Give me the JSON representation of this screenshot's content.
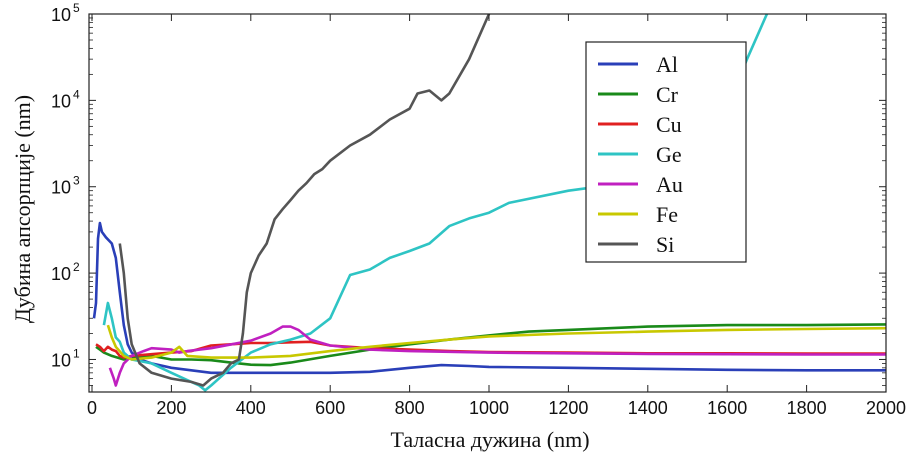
{
  "chart_data": {
    "type": "line",
    "xlabel": "Таласна дужина (nm)",
    "ylabel": "Дубина апсорпције (nm)",
    "xlim": [
      0,
      2000
    ],
    "ylim": [
      4.2,
      100000
    ],
    "yscale": "log",
    "grid": false,
    "legend_position": "top-right",
    "x_ticks": [
      "0",
      "200",
      "400",
      "600",
      "800",
      "1000",
      "1200",
      "1400",
      "1600",
      "1800",
      "2000"
    ],
    "y_ticks": [
      {
        "base": "10",
        "exp": "1"
      },
      {
        "base": "10",
        "exp": "2"
      },
      {
        "base": "10",
        "exp": "3"
      },
      {
        "base": "10",
        "exp": "4"
      },
      {
        "base": "10",
        "exp": "5"
      }
    ],
    "series": [
      {
        "name": "Al",
        "color": "#2a3fb8",
        "points": [
          [
            5,
            30
          ],
          [
            10,
            45
          ],
          [
            15,
            250
          ],
          [
            20,
            380
          ],
          [
            25,
            300
          ],
          [
            35,
            260
          ],
          [
            50,
            220
          ],
          [
            60,
            150
          ],
          [
            70,
            60
          ],
          [
            80,
            25
          ],
          [
            90,
            15
          ],
          [
            100,
            12
          ],
          [
            120,
            10
          ],
          [
            150,
            9
          ],
          [
            200,
            8
          ],
          [
            300,
            7
          ],
          [
            400,
            7
          ],
          [
            500,
            7
          ],
          [
            600,
            7
          ],
          [
            700,
            7.2
          ],
          [
            800,
            8
          ],
          [
            880,
            8.6
          ],
          [
            950,
            8.4
          ],
          [
            1000,
            8.2
          ],
          [
            1200,
            8
          ],
          [
            1400,
            7.8
          ],
          [
            1600,
            7.6
          ],
          [
            1800,
            7.5
          ],
          [
            2000,
            7.5
          ]
        ]
      },
      {
        "name": "Cr",
        "color": "#1a8a1a",
        "points": [
          [
            10,
            14
          ],
          [
            20,
            13
          ],
          [
            30,
            12
          ],
          [
            50,
            11
          ],
          [
            80,
            10
          ],
          [
            100,
            10.5
          ],
          [
            150,
            11
          ],
          [
            200,
            10
          ],
          [
            250,
            10
          ],
          [
            300,
            9.8
          ],
          [
            350,
            9.2
          ],
          [
            400,
            8.7
          ],
          [
            450,
            8.6
          ],
          [
            500,
            9.2
          ],
          [
            600,
            11
          ],
          [
            700,
            13
          ],
          [
            800,
            15
          ],
          [
            900,
            17
          ],
          [
            1000,
            19
          ],
          [
            1100,
            21
          ],
          [
            1200,
            22
          ],
          [
            1400,
            24
          ],
          [
            1600,
            25
          ],
          [
            1800,
            25
          ],
          [
            2000,
            25.5
          ]
        ]
      },
      {
        "name": "Cu",
        "color": "#e02020",
        "points": [
          [
            10,
            15
          ],
          [
            20,
            14
          ],
          [
            30,
            12.5
          ],
          [
            40,
            14
          ],
          [
            50,
            13
          ],
          [
            60,
            12.5
          ],
          [
            70,
            11
          ],
          [
            80,
            10.5
          ],
          [
            100,
            11
          ],
          [
            150,
            11.5
          ],
          [
            200,
            12
          ],
          [
            250,
            12.5
          ],
          [
            300,
            14.5
          ],
          [
            350,
            15
          ],
          [
            400,
            15.5
          ],
          [
            450,
            15.5
          ],
          [
            500,
            15.8
          ],
          [
            550,
            16
          ],
          [
            600,
            14.5
          ],
          [
            700,
            13.5
          ],
          [
            800,
            13
          ],
          [
            900,
            12.5
          ],
          [
            1000,
            12.2
          ],
          [
            1200,
            12
          ],
          [
            1400,
            11.8
          ],
          [
            1600,
            11.8
          ],
          [
            1800,
            11.7
          ],
          [
            2000,
            11.7
          ]
        ]
      },
      {
        "name": "Ge",
        "color": "#2ec4c4",
        "points": [
          [
            30,
            25
          ],
          [
            40,
            45
          ],
          [
            50,
            30
          ],
          [
            60,
            18
          ],
          [
            70,
            16
          ],
          [
            80,
            12
          ],
          [
            100,
            10
          ],
          [
            150,
            9
          ],
          [
            200,
            7
          ],
          [
            250,
            5.5
          ],
          [
            270,
            5
          ],
          [
            285,
            4.4
          ],
          [
            300,
            5
          ],
          [
            350,
            8
          ],
          [
            400,
            12
          ],
          [
            450,
            15
          ],
          [
            500,
            17
          ],
          [
            550,
            20
          ],
          [
            600,
            30
          ],
          [
            650,
            95
          ],
          [
            700,
            110
          ],
          [
            750,
            150
          ],
          [
            800,
            180
          ],
          [
            850,
            220
          ],
          [
            900,
            350
          ],
          [
            950,
            430
          ],
          [
            1000,
            500
          ],
          [
            1050,
            650
          ],
          [
            1200,
            900
          ],
          [
            1400,
            1200
          ],
          [
            1500,
            1500
          ],
          [
            1550,
            3000
          ],
          [
            1600,
            8000
          ],
          [
            1650,
            30000
          ],
          [
            1700,
            100000
          ]
        ]
      },
      {
        "name": "Au",
        "color": "#c020c0",
        "points": [
          [
            45,
            8
          ],
          [
            55,
            6
          ],
          [
            60,
            5
          ],
          [
            70,
            7
          ],
          [
            80,
            9
          ],
          [
            100,
            11
          ],
          [
            130,
            12.5
          ],
          [
            150,
            13.5
          ],
          [
            200,
            13
          ],
          [
            220,
            12
          ],
          [
            240,
            12.5
          ],
          [
            300,
            13.5
          ],
          [
            400,
            16.5
          ],
          [
            450,
            20
          ],
          [
            480,
            24
          ],
          [
            500,
            24
          ],
          [
            520,
            22
          ],
          [
            550,
            17
          ],
          [
            600,
            14.5
          ],
          [
            700,
            13
          ],
          [
            800,
            12.5
          ],
          [
            1000,
            12
          ],
          [
            1200,
            11.8
          ],
          [
            1400,
            11.6
          ],
          [
            1600,
            11.5
          ],
          [
            1800,
            11.4
          ],
          [
            2000,
            11.4
          ]
        ]
      },
      {
        "name": "Fe",
        "color": "#c8c800",
        "points": [
          [
            40,
            25
          ],
          [
            50,
            18
          ],
          [
            60,
            14
          ],
          [
            80,
            11
          ],
          [
            100,
            10
          ],
          [
            150,
            10.5
          ],
          [
            200,
            12
          ],
          [
            220,
            14
          ],
          [
            240,
            11
          ],
          [
            300,
            10.5
          ],
          [
            400,
            10.5
          ],
          [
            500,
            11
          ],
          [
            600,
            12.5
          ],
          [
            700,
            14
          ],
          [
            800,
            15.5
          ],
          [
            900,
            17
          ],
          [
            1000,
            18.5
          ],
          [
            1200,
            20
          ],
          [
            1400,
            21
          ],
          [
            1600,
            22
          ],
          [
            1800,
            22.5
          ],
          [
            2000,
            23
          ]
        ]
      },
      {
        "name": "Si",
        "color": "#555555",
        "points": [
          [
            70,
            220
          ],
          [
            80,
            100
          ],
          [
            90,
            30
          ],
          [
            100,
            15
          ],
          [
            120,
            9
          ],
          [
            150,
            7
          ],
          [
            200,
            6
          ],
          [
            250,
            5.5
          ],
          [
            280,
            5
          ],
          [
            300,
            6
          ],
          [
            330,
            7
          ],
          [
            350,
            9
          ],
          [
            370,
            10
          ],
          [
            380,
            20
          ],
          [
            390,
            60
          ],
          [
            400,
            100
          ],
          [
            420,
            160
          ],
          [
            440,
            220
          ],
          [
            460,
            420
          ],
          [
            480,
            550
          ],
          [
            500,
            700
          ],
          [
            520,
            900
          ],
          [
            540,
            1100
          ],
          [
            560,
            1400
          ],
          [
            580,
            1600
          ],
          [
            600,
            2000
          ],
          [
            650,
            3000
          ],
          [
            700,
            4000
          ],
          [
            750,
            6000
          ],
          [
            800,
            8000
          ],
          [
            820,
            12000
          ],
          [
            850,
            13000
          ],
          [
            880,
            10000
          ],
          [
            900,
            12000
          ],
          [
            950,
            30000
          ],
          [
            1000,
            100000
          ]
        ]
      }
    ]
  }
}
